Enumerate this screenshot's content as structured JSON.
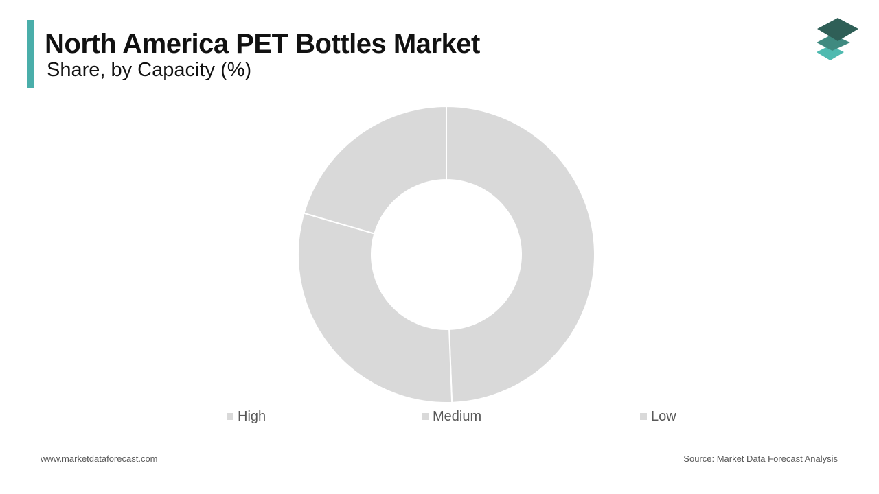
{
  "header": {
    "title": "North America PET Bottles Market",
    "subtitle": "Share, by Capacity (%)",
    "accent_color": "#4aaeaa"
  },
  "logo": {
    "icon": "stacked-layers-logo-icon",
    "colors": [
      "#2f5f57",
      "#3f8a80",
      "#4fbab0"
    ]
  },
  "chart_data": {
    "type": "pie",
    "variant": "donut",
    "title": "North America PET Bottles Market",
    "subtitle": "Share, by Capacity (%)",
    "categories": [
      "High",
      "Medium",
      "Low"
    ],
    "values": [
      49.4,
      30.1,
      20.5
    ],
    "units": "%",
    "colors": [
      "#d9d9d9",
      "#d9d9d9",
      "#d9d9d9"
    ],
    "legend_position": "bottom",
    "data_labels": []
  },
  "legend": {
    "items": [
      {
        "label": "High",
        "color": "#d9d9d9"
      },
      {
        "label": "Medium",
        "color": "#d9d9d9"
      },
      {
        "label": "Low",
        "color": "#d9d9d9"
      }
    ]
  },
  "footer": {
    "website": "www.marketdataforecast.com",
    "source": "Source: Market Data Forecast Analysis"
  }
}
